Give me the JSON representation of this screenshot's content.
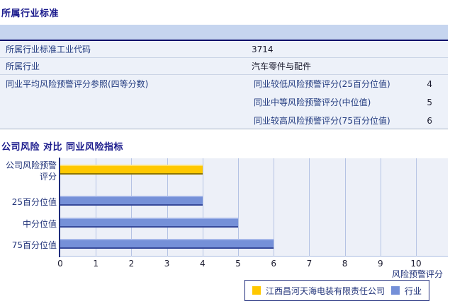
{
  "page": {
    "section1_title": "所属行业标准",
    "section2_title": "公司风险 对比 同业风险指标"
  },
  "table": {
    "rows": [
      {
        "label": "所属行业标准工业代码",
        "value": "3714"
      },
      {
        "label": "所属行业",
        "value": "汽车零件与配件"
      }
    ],
    "quartile_row": {
      "label": "同业平均风险预警评分参照(四等分数)",
      "items": [
        {
          "label": "同业较低风险预警评分(25百分位值)",
          "value": "4"
        },
        {
          "label": "同业中等风险预警评分(中位值)",
          "value": "5"
        },
        {
          "label": "同业较高风险预警评分(75百分位值)",
          "value": "6"
        }
      ]
    }
  },
  "chart_data": {
    "type": "bar",
    "orientation": "horizontal",
    "title": "公司风险 对比 同业风险指标",
    "categories": [
      "公司风险预警评分",
      "25百分位值",
      "中分位值",
      "75百分位值"
    ],
    "series": [
      {
        "name": "江西昌河天海电装有限责任公司",
        "color": "#ffc800",
        "values": [
          4,
          null,
          null,
          null
        ]
      },
      {
        "name": "行业",
        "color": "#7590d8",
        "values": [
          null,
          4,
          5,
          6
        ]
      }
    ],
    "xlabel": "风险预警评分",
    "xlim": [
      0,
      10
    ],
    "xticks": [
      0,
      1,
      2,
      3,
      4,
      5,
      6,
      7,
      8,
      9,
      10
    ],
    "grid": true,
    "legend_position": "bottom"
  },
  "colors": {
    "title_navy": "#1a1a8c",
    "table_band": "#c6d5ef",
    "table_band_line": "#00006b",
    "table_row_bg": "#edf1f9",
    "plot_bg": "#edf0f8",
    "gridline": "#b5c3e4",
    "axis_navy": "#1f2c7c",
    "company_bar": "#ffc800",
    "industry_bar": "#7590d8"
  }
}
